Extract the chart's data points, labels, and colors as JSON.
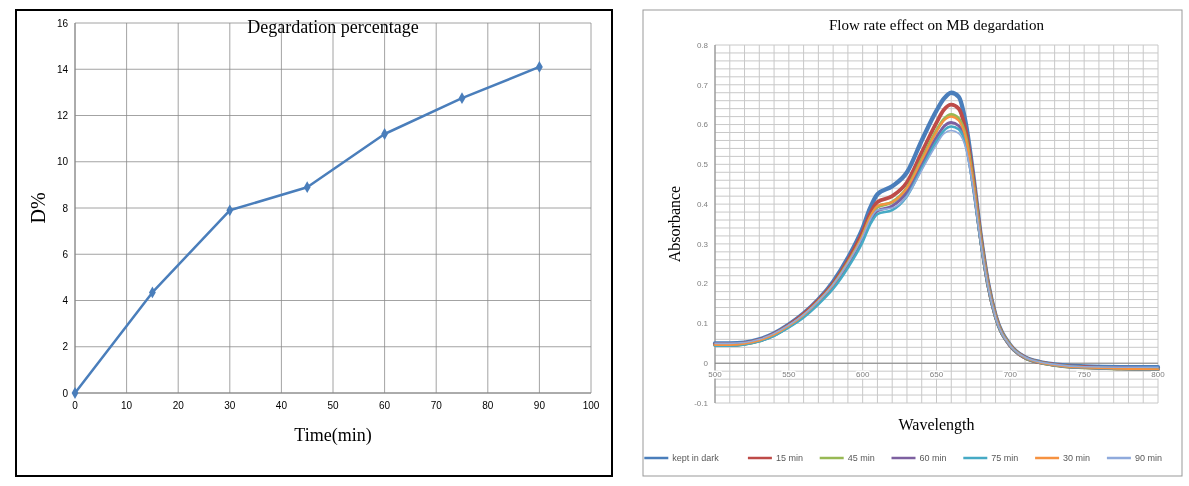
{
  "chart_data": [
    {
      "type": "line",
      "title": "Degardation percentage",
      "xlabel": "Time(min)",
      "ylabel": "D%",
      "x": [
        0,
        15,
        30,
        45,
        60,
        75,
        90
      ],
      "xlim": [
        0,
        100
      ],
      "xticks": [
        0,
        10,
        20,
        30,
        40,
        50,
        60,
        70,
        80,
        90,
        100
      ],
      "ylim": [
        0,
        16
      ],
      "yticks": [
        0,
        2,
        4,
        6,
        8,
        10,
        12,
        14,
        16
      ],
      "grid": true,
      "marker": "diamond",
      "legend": false,
      "series": [
        {
          "color": "#4a7ebb",
          "values": [
            0,
            4.35,
            7.9,
            8.9,
            11.2,
            12.75,
            14.1
          ]
        }
      ]
    },
    {
      "type": "line",
      "title": "Flow rate effect on MB degardation",
      "xlabel": "Wavelength",
      "ylabel": "Absorbance",
      "x": [
        500,
        510,
        520,
        530,
        540,
        550,
        560,
        570,
        580,
        590,
        600,
        605,
        610,
        620,
        630,
        640,
        650,
        655,
        660,
        665,
        670,
        675,
        680,
        685,
        690,
        700,
        710,
        720,
        730,
        750,
        775,
        800
      ],
      "xlim": [
        500,
        800
      ],
      "xticks": [
        500,
        550,
        600,
        650,
        700,
        750,
        800
      ],
      "ylim": [
        -0.1,
        0.8
      ],
      "yticks": [
        -0.1,
        0,
        0.1,
        0.2,
        0.3,
        0.4,
        0.5,
        0.6,
        0.7,
        0.8
      ],
      "grid": true,
      "marker": "none",
      "legend": "bottom",
      "series": [
        {
          "name": "kept in dark",
          "color": "#4a7ebb",
          "values": [
            0.05,
            0.05,
            0.052,
            0.06,
            0.075,
            0.097,
            0.125,
            0.16,
            0.205,
            0.265,
            0.34,
            0.39,
            0.425,
            0.445,
            0.48,
            0.56,
            0.635,
            0.665,
            0.68,
            0.67,
            0.6,
            0.47,
            0.32,
            0.2,
            0.12,
            0.045,
            0.015,
            0.003,
            -0.003,
            -0.008,
            -0.01,
            -0.01
          ]
        },
        {
          "name": "15 min",
          "color": "#be4b48",
          "values": [
            0.047,
            0.047,
            0.05,
            0.058,
            0.073,
            0.095,
            0.123,
            0.158,
            0.2,
            0.258,
            0.33,
            0.375,
            0.405,
            0.42,
            0.455,
            0.53,
            0.605,
            0.637,
            0.65,
            0.64,
            0.58,
            0.46,
            0.315,
            0.197,
            0.118,
            0.044,
            0.014,
            0.002,
            -0.004,
            -0.01,
            -0.013,
            -0.015
          ]
        },
        {
          "name": "45 min",
          "color": "#98b954",
          "values": [
            0.045,
            0.045,
            0.048,
            0.056,
            0.071,
            0.093,
            0.12,
            0.155,
            0.196,
            0.252,
            0.32,
            0.365,
            0.393,
            0.405,
            0.44,
            0.512,
            0.585,
            0.613,
            0.625,
            0.615,
            0.565,
            0.45,
            0.31,
            0.195,
            0.117,
            0.044,
            0.014,
            0.002,
            -0.005,
            -0.011,
            -0.014,
            -0.015
          ]
        },
        {
          "name": "60 min",
          "color": "#7d60a0",
          "values": [
            0.045,
            0.045,
            0.048,
            0.056,
            0.07,
            0.092,
            0.118,
            0.152,
            0.192,
            0.246,
            0.312,
            0.355,
            0.383,
            0.395,
            0.43,
            0.5,
            0.568,
            0.595,
            0.605,
            0.597,
            0.55,
            0.44,
            0.305,
            0.193,
            0.116,
            0.043,
            0.014,
            0.002,
            -0.005,
            -0.011,
            -0.014,
            -0.015
          ]
        },
        {
          "name": "75 min",
          "color": "#46aac5",
          "values": [
            0.044,
            0.044,
            0.047,
            0.055,
            0.069,
            0.09,
            0.115,
            0.148,
            0.187,
            0.24,
            0.305,
            0.348,
            0.375,
            0.385,
            0.42,
            0.49,
            0.558,
            0.585,
            0.595,
            0.588,
            0.545,
            0.437,
            0.303,
            0.192,
            0.115,
            0.043,
            0.014,
            0.002,
            -0.005,
            -0.011,
            -0.014,
            -0.015
          ]
        },
        {
          "name": "30 min",
          "color": "#f69240",
          "values": [
            0.046,
            0.046,
            0.049,
            0.057,
            0.072,
            0.094,
            0.121,
            0.156,
            0.197,
            0.253,
            0.322,
            0.367,
            0.395,
            0.405,
            0.44,
            0.51,
            0.582,
            0.61,
            0.62,
            0.61,
            0.562,
            0.448,
            0.308,
            0.195,
            0.117,
            0.044,
            0.014,
            0.002,
            -0.005,
            -0.011,
            -0.014,
            -0.015
          ]
        },
        {
          "name": "90 min",
          "color": "#8faadc",
          "values": [
            0.05,
            0.05,
            0.052,
            0.06,
            0.075,
            0.096,
            0.122,
            0.156,
            0.198,
            0.252,
            0.318,
            0.36,
            0.385,
            0.39,
            0.42,
            0.485,
            0.55,
            0.577,
            0.585,
            0.578,
            0.538,
            0.435,
            0.302,
            0.192,
            0.115,
            0.044,
            0.015,
            0.003,
            -0.003,
            -0.009,
            -0.01,
            -0.01
          ]
        }
      ]
    }
  ]
}
